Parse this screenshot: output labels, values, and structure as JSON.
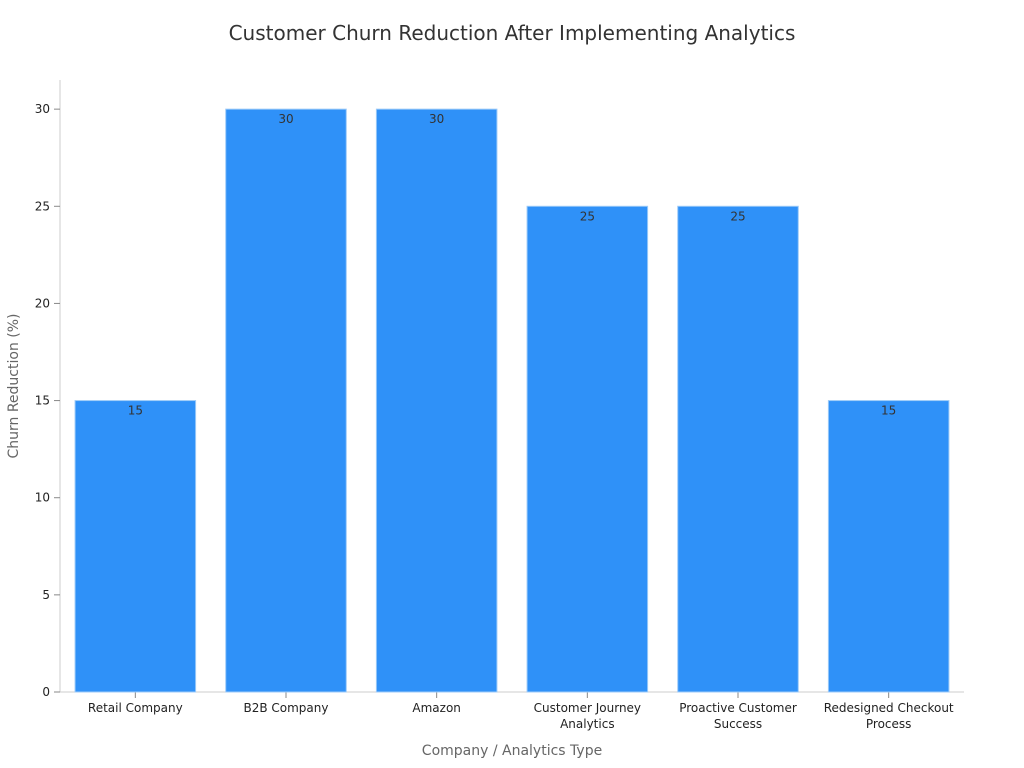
{
  "chart_data": {
    "type": "bar",
    "title": "Customer Churn Reduction After Implementing Analytics",
    "xlabel": "Company / Analytics Type",
    "ylabel": "Churn Reduction (%)",
    "categories": [
      [
        "Retail Company"
      ],
      [
        "B2B Company"
      ],
      [
        "Amazon"
      ],
      [
        "Customer Journey",
        "Analytics"
      ],
      [
        "Proactive Customer",
        "Success"
      ],
      [
        "Redesigned Checkout",
        "Process"
      ]
    ],
    "values": [
      15,
      30,
      30,
      25,
      25,
      15
    ],
    "ylim": [
      0,
      31.5
    ],
    "yticks": [
      0,
      5,
      10,
      15,
      20,
      25,
      30
    ],
    "grid": false,
    "bar_color": "#2f91f8",
    "bar_edge_color": "#9ccaf8"
  }
}
